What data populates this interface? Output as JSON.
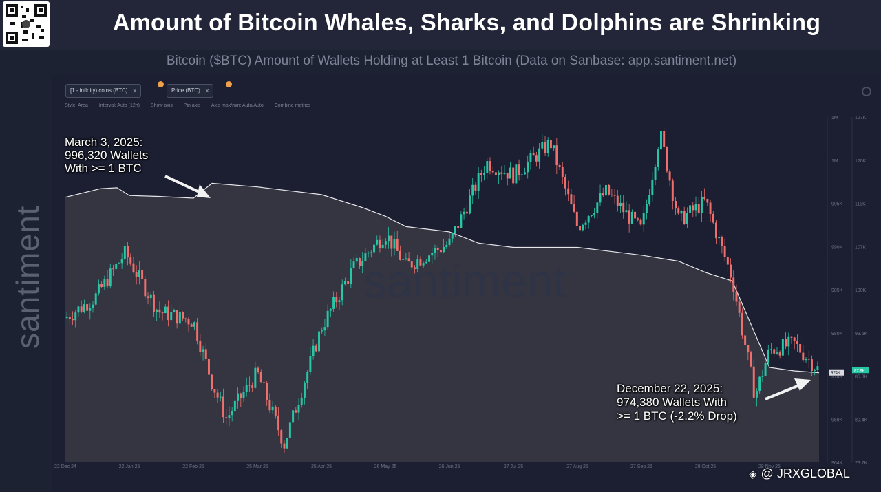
{
  "header": {
    "title": "Amount of Bitcoin Whales, Sharks, and Dolphins are Shrinking",
    "subtitle": "Bitcoin ($BTC) Amount of Wallets Holding at Least 1 Bitcoin (Data on Sanbase: app.santiment.net)"
  },
  "side_brand": "santiment",
  "chart_watermark": "santiment",
  "metric_chips": [
    {
      "label": "[1 - infinity) coins (BTC)",
      "icon": "close-icon"
    },
    {
      "label": "Price (BTC)",
      "icon": "close-icon"
    }
  ],
  "toolbar": {
    "style": "Style: Area",
    "interval": "Interval: Auto (12h)",
    "show_axis": "Show axis",
    "pin_axis": "Pin axis",
    "axis_minmax": "Axis max/min: Auto/Auto",
    "combine": "Combine metrics"
  },
  "annotations": {
    "start": "March 3, 2025:\n996,320 Wallets\nWith >= 1 BTC",
    "end": "December 22, 2025:\n974,380 Wallets With\n>= 1 BTC (-2.2% Drop)"
  },
  "watermark": "@ JRXGLOBAL",
  "colors": {
    "background": "#1b1f31",
    "area_fill": "#3a3a44",
    "area_line": "#e6e6ea",
    "candle_up": "#26c6a6",
    "candle_down": "#ef6f6c",
    "accent_orange": "#f0a04b"
  },
  "chart_data": {
    "type": "area",
    "x_ticks": [
      "22 Dec 24",
      "22 Jan 25",
      "22 Feb 25",
      "25 Mar 25",
      "25 Apr 25",
      "26 May 25",
      "26 Jun 25",
      "27 Jul 25",
      "27 Aug 25",
      "27 Sep 25",
      "28 Oct 25",
      "28 Nov 25"
    ],
    "left_axis_ticks": [
      "1M",
      "1M",
      "995K",
      "990K",
      "985K",
      "980K",
      "974K",
      "969K",
      "964K"
    ],
    "right_axis_ticks": [
      "127K",
      "120K",
      "113K",
      "107K",
      "100K",
      "93.6K",
      "86.8K",
      "80.4K",
      "73.7K"
    ],
    "current_tags": {
      "wallets": "974K",
      "price": "87.9K"
    },
    "series": [
      {
        "name": "[1 - infinity) coins (BTC)",
        "x": [
          "22 Dec 24",
          "8 Jan 25",
          "16 Jan 25",
          "22 Jan 25",
          "5 Feb 25",
          "22 Feb 25",
          "3 Mar 25",
          "25 Mar 25",
          "25 Apr 25",
          "15 May 25",
          "26 May 25",
          "5 Jun 25",
          "26 Jun 25",
          "10 Jul 25",
          "27 Jul 25",
          "27 Aug 25",
          "27 Sep 25",
          "15 Oct 25",
          "28 Oct 25",
          "10 Nov 25",
          "28 Nov 25",
          "10 Dec 25",
          "22 Dec 25"
        ],
        "values": [
          994700,
          995700,
          995800,
          994900,
          994800,
          994600,
          996320,
          995900,
          995000,
          993500,
          992500,
          991300,
          990700,
          989400,
          988900,
          988900,
          988000,
          987300,
          986000,
          985000,
          975000,
          974600,
          974380
        ]
      },
      {
        "name": "Price (BTC)",
        "x": [
          "22 Dec 24",
          "5 Jan 25",
          "20 Jan 25",
          "5 Feb 25",
          "22 Feb 25",
          "3 Mar 25",
          "10 Mar 25",
          "25 Mar 25",
          "7 Apr 25",
          "25 Apr 25",
          "10 May 25",
          "26 May 25",
          "5 Jun 25",
          "26 Jun 25",
          "14 Jul 25",
          "27 Jul 25",
          "14 Aug 25",
          "27 Aug 25",
          "10 Sep 25",
          "27 Sep 25",
          "6 Oct 25",
          "15 Oct 25",
          "28 Oct 25",
          "10 Nov 25",
          "21 Nov 25",
          "28 Nov 25",
          "10 Dec 25",
          "22 Dec 25"
        ],
        "values": [
          96000,
          99000,
          106000,
          97000,
          95500,
          86000,
          80500,
          87500,
          76500,
          94500,
          103500,
          109000,
          104000,
          107500,
          120000,
          118000,
          123000,
          110000,
          115500,
          109500,
          124500,
          111000,
          114000,
          102000,
          84000,
          91000,
          92000,
          87900
        ]
      }
    ]
  }
}
